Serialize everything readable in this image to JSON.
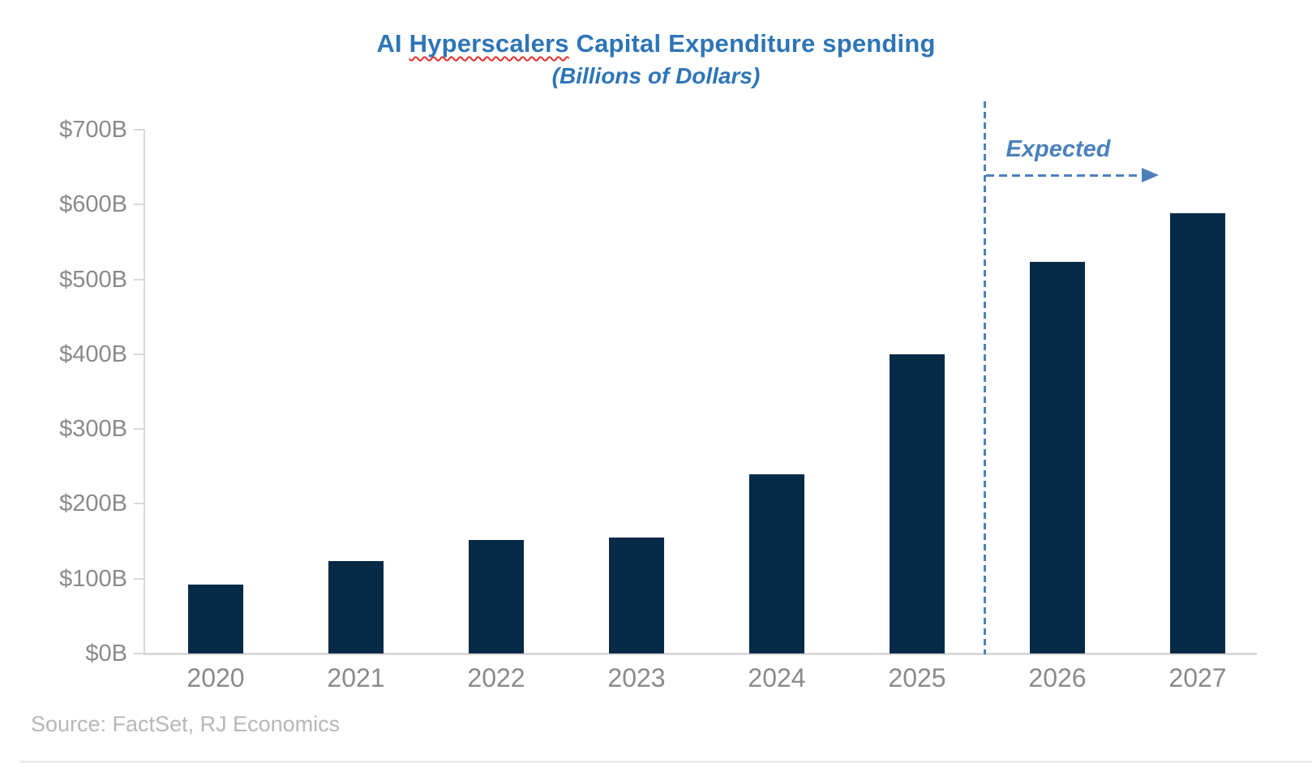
{
  "header": {
    "title_part1": "AI ",
    "title_misspelled_word": "Hyperscalers",
    "title_part2": " Capital Expenditure spending",
    "subtitle": "(Billions of Dollars)"
  },
  "annotation": {
    "label": "Expected"
  },
  "footer": {
    "source": "Source: FactSet, RJ Economics"
  },
  "colors": {
    "bar": "#062A46",
    "title": "#2E75B6",
    "annotation": "#4C80BC",
    "axis_labels": "#8A8A8A",
    "source": "#B7B7B7",
    "axis_line": "#D9D9D9",
    "squiggle": "#E0302C",
    "divider": "#EDEDED"
  },
  "chart_data": {
    "type": "bar",
    "title": "AI Hyperscalers Capital Expenditure spending",
    "subtitle": "(Billions of Dollars)",
    "unit": "billions of US dollars",
    "categories": [
      "2020",
      "2021",
      "2022",
      "2023",
      "2024",
      "2025",
      "2026",
      "2027"
    ],
    "values": [
      92,
      124,
      152,
      155,
      240,
      400,
      523,
      588
    ],
    "ylim": [
      0,
      700
    ],
    "ytick_step": 100,
    "ytick_labels": [
      "$0B",
      "$100B",
      "$200B",
      "$300B",
      "$400B",
      "$500B",
      "$600B",
      "$700B"
    ],
    "grid": false,
    "legend": false,
    "bar_color": "#062A46",
    "annotation": {
      "text": "Expected",
      "divider_between": [
        "2025",
        "2026"
      ],
      "applies_to": [
        "2026",
        "2027"
      ]
    }
  }
}
